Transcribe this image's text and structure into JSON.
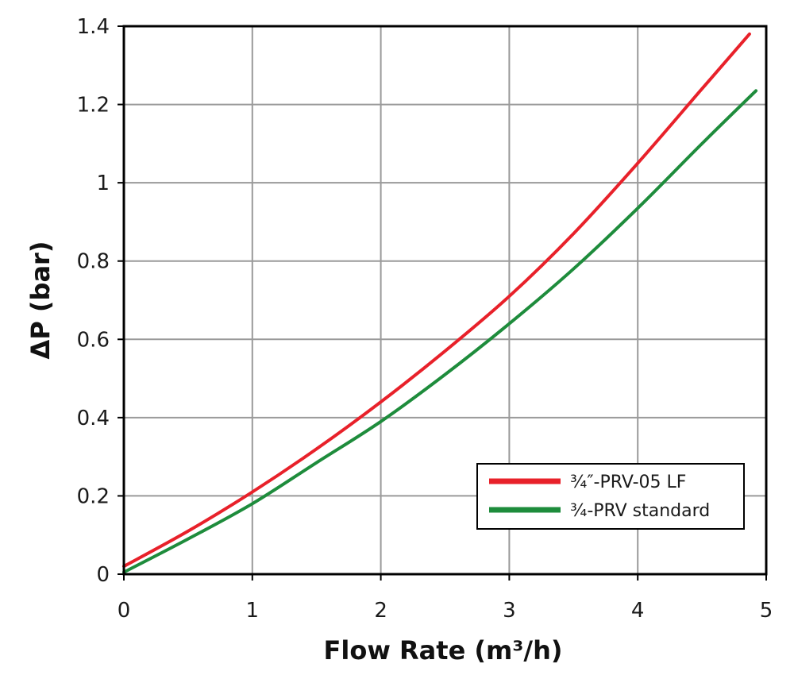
{
  "chart_data": {
    "type": "line",
    "xlabel": "Flow Rate (m³/h)",
    "ylabel": "ΔP (bar)",
    "xlim": [
      0,
      5
    ],
    "ylim": [
      0,
      1.4
    ],
    "x_ticks": [
      "0",
      "1",
      "2",
      "3",
      "4",
      "5"
    ],
    "y_ticks": [
      "0",
      "0.2",
      "0.4",
      "0.6",
      "0.8",
      "1",
      "1.2",
      "1.4"
    ],
    "grid": true,
    "legend_position": "bottom-right",
    "series": [
      {
        "name": "¾″-PRV-05 LF",
        "color": "#e8212a",
        "x": [
          0,
          0.5,
          1,
          1.5,
          2,
          2.5,
          3,
          3.5,
          4,
          4.5,
          4.87
        ],
        "y": [
          0.02,
          0.11,
          0.21,
          0.32,
          0.44,
          0.57,
          0.71,
          0.87,
          1.05,
          1.24,
          1.38
        ]
      },
      {
        "name": "¾-PRV standard",
        "color": "#1e8c3c",
        "x": [
          0,
          0.5,
          1,
          1.5,
          2,
          2.5,
          3,
          3.5,
          4,
          4.5,
          4.92
        ],
        "y": [
          0.005,
          0.09,
          0.18,
          0.285,
          0.39,
          0.51,
          0.64,
          0.78,
          0.935,
          1.1,
          1.235
        ]
      }
    ]
  }
}
